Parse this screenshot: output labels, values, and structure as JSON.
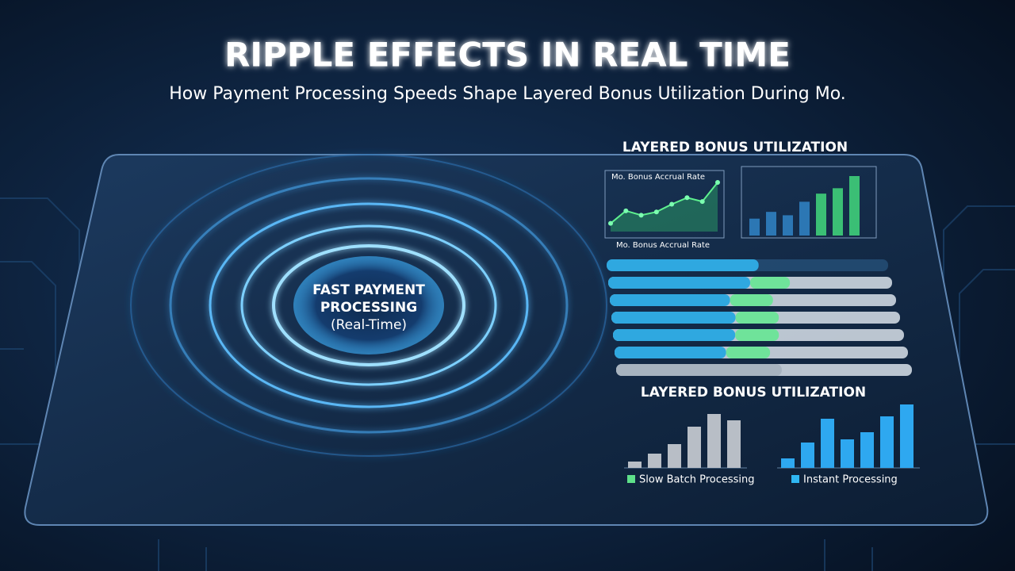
{
  "header": {
    "title": "RIPPLE EFFECTS IN REAL TIME",
    "subtitle": "How Payment Processing Speeds Shape Layered Bonus Utilization During Mo."
  },
  "center": {
    "lines": [
      "FAST PAYMENT",
      "PROCESSING",
      "(Real-Time)"
    ]
  },
  "top_panel": {
    "title": "LAYERED BONUS UTILIZATION",
    "line_chart": {
      "label_top": "Mo. Bonus Accrual Rate",
      "label_bottom": "Mo. Bonus Accrual Rate",
      "values": [
        15,
        38,
        30,
        36,
        50,
        62,
        55,
        90
      ]
    },
    "bar_chart": {
      "values": [
        25,
        35,
        30,
        50,
        62,
        70,
        88
      ]
    }
  },
  "progress_bars": {
    "blue": [
      54,
      50,
      42,
      43,
      42,
      38,
      0
    ],
    "green": [
      0,
      14,
      15,
      15,
      15,
      15,
      0
    ],
    "gray": [
      0,
      0,
      0,
      0,
      0,
      0,
      56
    ]
  },
  "bottom_panel": {
    "title": "LAYERED BONUS UTILIZATION",
    "series": [
      {
        "name": "Slow Batch Processing",
        "color": "#b8bec6",
        "legend_color": "#5ee08a",
        "values": [
          8,
          18,
          30,
          52,
          68,
          60
        ]
      },
      {
        "name": "Instant Processing",
        "color": "#2ea8f0",
        "legend_color": "#2fb6f2",
        "values": [
          12,
          32,
          62,
          36,
          45,
          65,
          80
        ]
      }
    ]
  }
}
